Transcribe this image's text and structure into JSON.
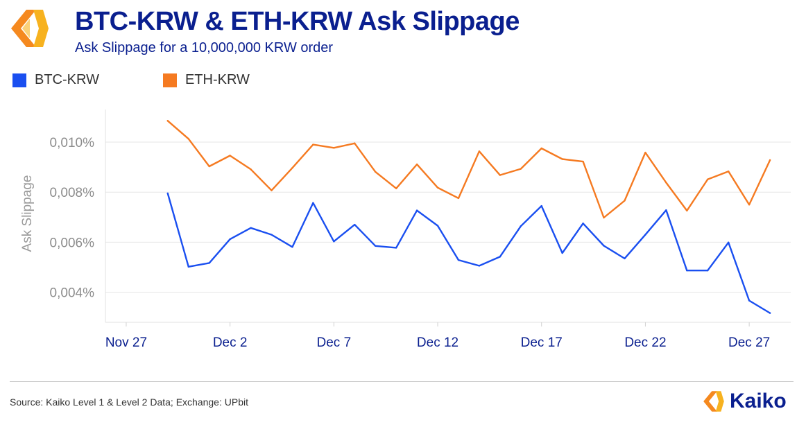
{
  "header": {
    "title": "BTC-KRW & ETH-KRW Ask Slippage",
    "subtitle": "Ask Slippage for a 10,000,000 KRW order"
  },
  "legend": {
    "items": [
      {
        "label": "BTC-KRW",
        "color": "#1a4ff0"
      },
      {
        "label": "ETH-KRW",
        "color": "#f57a21"
      }
    ]
  },
  "footer": {
    "source": "Source: Kaiko Level 1 & Level 2 Data; Exchange: UPbit",
    "brand": "Kaiko"
  },
  "chart_data": {
    "type": "line",
    "title": "BTC-KRW & ETH-KRW Ask Slippage",
    "subtitle": "Ask Slippage for a 10,000,000 KRW order",
    "xlabel": "",
    "ylabel": "Ask Slippage",
    "ylim": [
      0.0028,
      0.0113
    ],
    "yticks": [
      0.004,
      0.006,
      0.008,
      0.01
    ],
    "ytick_labels": [
      "0,004%",
      "0,006%",
      "0,008%",
      "0,010%"
    ],
    "x_range": [
      -2,
      31
    ],
    "xticks": [
      -1,
      4,
      9,
      14,
      19,
      24,
      29
    ],
    "xtick_labels": [
      "Nov 27",
      "Dec 2",
      "Dec 7",
      "Dec 12",
      "Dec 17",
      "Dec 22",
      "Dec 27"
    ],
    "x": [
      1,
      2,
      3,
      4,
      5,
      6,
      7,
      8,
      9,
      10,
      11,
      12,
      13,
      14,
      15,
      16,
      17,
      18,
      19,
      20,
      21,
      22,
      23,
      24,
      25,
      26,
      27,
      28,
      29,
      30
    ],
    "grid": true,
    "series": [
      {
        "name": "BTC-KRW",
        "color": "#1a4ff0",
        "values": [
          0.00795,
          0.00502,
          0.00517,
          0.00612,
          0.00657,
          0.0063,
          0.00581,
          0.00757,
          0.00603,
          0.0067,
          0.00585,
          0.00578,
          0.00727,
          0.00666,
          0.00529,
          0.00506,
          0.00542,
          0.00664,
          0.00745,
          0.00557,
          0.00675,
          0.00586,
          0.00535,
          0.0063,
          0.00728,
          0.00487,
          0.00487,
          0.00599,
          0.00367,
          0.00317
        ]
      },
      {
        "name": "ETH-KRW",
        "color": "#f57a21",
        "values": [
          0.01085,
          0.01013,
          0.00903,
          0.00946,
          0.00891,
          0.00807,
          0.00897,
          0.0099,
          0.00977,
          0.00995,
          0.00881,
          0.00815,
          0.00911,
          0.00818,
          0.00776,
          0.00963,
          0.00868,
          0.00893,
          0.00975,
          0.00932,
          0.00922,
          0.00698,
          0.00766,
          0.00958,
          0.00838,
          0.00726,
          0.00851,
          0.00883,
          0.0075,
          0.00928
        ]
      }
    ]
  }
}
